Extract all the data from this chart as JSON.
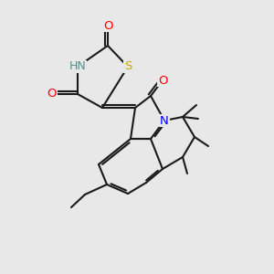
{
  "background_color": "#e8e8e8",
  "bond_color": "#1a1a1a",
  "atom_colors": {
    "O": "#ff0000",
    "N_blue": "#0000ff",
    "N_gray": "#5a8a8a",
    "S": "#ccaa00",
    "C": "#1a1a1a"
  },
  "figsize": [
    3.0,
    3.0
  ],
  "dpi": 100,
  "lw": 1.5
}
